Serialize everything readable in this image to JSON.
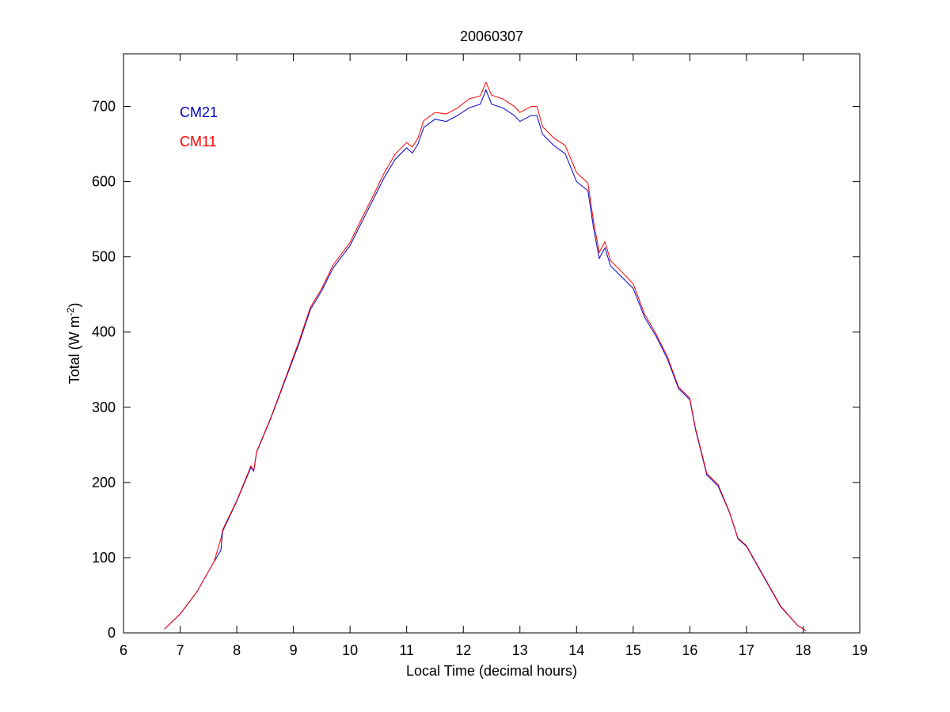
{
  "chart_data": {
    "type": "line",
    "title": "20060307",
    "xlabel": "Local Time (decimal hours)",
    "ylabel": {
      "text": "Total (W m",
      "superscript": "-2",
      "suffix": ")"
    },
    "x": [
      6.72,
      7.0,
      7.3,
      7.6,
      7.72,
      7.75,
      8.0,
      8.25,
      8.3,
      8.35,
      8.6,
      8.9,
      9.1,
      9.3,
      9.5,
      9.7,
      10.0,
      10.2,
      10.4,
      10.6,
      10.8,
      11.0,
      11.1,
      11.2,
      11.3,
      11.5,
      11.7,
      11.9,
      12.1,
      12.3,
      12.4,
      12.5,
      12.7,
      12.9,
      13.0,
      13.2,
      13.3,
      13.4,
      13.6,
      13.8,
      14.0,
      14.2,
      14.3,
      14.4,
      14.5,
      14.6,
      14.8,
      15.0,
      15.2,
      15.4,
      15.6,
      15.8,
      16.0,
      16.1,
      16.3,
      16.5,
      16.7,
      16.85,
      17.0,
      17.3,
      17.6,
      17.9,
      18.05
    ],
    "series": [
      {
        "name": "CM21",
        "color": "#0000cc",
        "values": [
          5,
          25,
          55,
          95,
          110,
          135,
          175,
          220,
          215,
          240,
          285,
          345,
          385,
          430,
          455,
          485,
          515,
          545,
          575,
          605,
          630,
          645,
          638,
          650,
          672,
          683,
          680,
          688,
          698,
          703,
          722,
          703,
          698,
          688,
          680,
          688,
          688,
          663,
          648,
          637,
          600,
          588,
          538,
          498,
          512,
          488,
          473,
          458,
          420,
          395,
          365,
          325,
          310,
          270,
          210,
          195,
          160,
          125,
          115,
          75,
          35,
          10,
          3
        ]
      },
      {
        "name": "CM11",
        "color": "#ff0000",
        "values": [
          5,
          25,
          55,
          95,
          125,
          137,
          176,
          222,
          216,
          241,
          286,
          347,
          388,
          433,
          458,
          489,
          519,
          550,
          580,
          611,
          637,
          652,
          646,
          658,
          681,
          692,
          690,
          698,
          710,
          714,
          732,
          715,
          710,
          700,
          692,
          700,
          700,
          673,
          658,
          648,
          612,
          598,
          547,
          506,
          520,
          495,
          480,
          464,
          424,
          398,
          368,
          327,
          312,
          272,
          212,
          197,
          161,
          126,
          116,
          76,
          36,
          10,
          3
        ]
      }
    ],
    "xlim": [
      6,
      19
    ],
    "xticks": [
      6,
      7,
      8,
      9,
      10,
      11,
      12,
      13,
      14,
      15,
      16,
      17,
      18,
      19
    ],
    "ylim": [
      0,
      770
    ],
    "yticks": [
      0,
      100,
      200,
      300,
      400,
      500,
      600,
      700
    ],
    "grid": false
  }
}
